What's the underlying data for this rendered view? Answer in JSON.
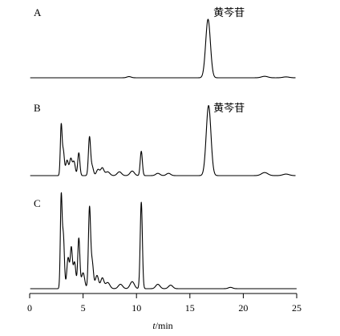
{
  "chart_data": {
    "type": "line",
    "xlabel_italic": "t",
    "xlabel_unit": "/min",
    "xlim": [
      0,
      25
    ],
    "x_ticks": [
      0,
      5,
      10,
      15,
      20,
      25
    ],
    "grid": false,
    "panels": [
      {
        "label": "A",
        "peak_label": "黄芩苷",
        "peak_label_x": 17.2,
        "baseline_end_x": 24.9,
        "peaks": [
          {
            "x": 16.7,
            "h": 1.0,
            "w": 0.22
          },
          {
            "x": 9.3,
            "h": 0.02,
            "w": 0.2
          },
          {
            "x": 22.0,
            "h": 0.025,
            "w": 0.3
          },
          {
            "x": 24.0,
            "h": 0.015,
            "w": 0.3
          }
        ]
      },
      {
        "label": "B",
        "peak_label": "黄芩苷",
        "peak_label_x": 17.2,
        "baseline_end_x": 24.9,
        "peaks": [
          {
            "x": 2.95,
            "h": 0.64,
            "w": 0.08
          },
          {
            "x": 3.15,
            "h": 0.32,
            "w": 0.1
          },
          {
            "x": 3.5,
            "h": 0.2,
            "w": 0.12
          },
          {
            "x": 3.85,
            "h": 0.22,
            "w": 0.12
          },
          {
            "x": 4.15,
            "h": 0.18,
            "w": 0.12
          },
          {
            "x": 4.6,
            "h": 0.3,
            "w": 0.1
          },
          {
            "x": 5.6,
            "h": 0.5,
            "w": 0.1
          },
          {
            "x": 5.85,
            "h": 0.12,
            "w": 0.12
          },
          {
            "x": 6.4,
            "h": 0.08,
            "w": 0.15
          },
          {
            "x": 6.8,
            "h": 0.1,
            "w": 0.15
          },
          {
            "x": 7.3,
            "h": 0.05,
            "w": 0.2
          },
          {
            "x": 8.4,
            "h": 0.05,
            "w": 0.2
          },
          {
            "x": 9.6,
            "h": 0.06,
            "w": 0.2
          },
          {
            "x": 10.45,
            "h": 0.32,
            "w": 0.1
          },
          {
            "x": 12.0,
            "h": 0.03,
            "w": 0.2
          },
          {
            "x": 13.0,
            "h": 0.03,
            "w": 0.2
          },
          {
            "x": 16.75,
            "h": 0.92,
            "w": 0.22
          },
          {
            "x": 22.0,
            "h": 0.04,
            "w": 0.3
          },
          {
            "x": 24.0,
            "h": 0.02,
            "w": 0.3
          }
        ]
      },
      {
        "label": "C",
        "peak_label": "",
        "baseline_end_x": 25,
        "peaks": [
          {
            "x": 2.95,
            "h": 1.0,
            "w": 0.08
          },
          {
            "x": 3.15,
            "h": 0.6,
            "w": 0.1
          },
          {
            "x": 3.6,
            "h": 0.35,
            "w": 0.12
          },
          {
            "x": 3.9,
            "h": 0.45,
            "w": 0.1
          },
          {
            "x": 4.2,
            "h": 0.3,
            "w": 0.12
          },
          {
            "x": 4.6,
            "h": 0.57,
            "w": 0.1
          },
          {
            "x": 5.0,
            "h": 0.18,
            "w": 0.15
          },
          {
            "x": 5.6,
            "h": 0.9,
            "w": 0.1
          },
          {
            "x": 5.85,
            "h": 0.3,
            "w": 0.12
          },
          {
            "x": 6.3,
            "h": 0.15,
            "w": 0.15
          },
          {
            "x": 6.8,
            "h": 0.12,
            "w": 0.15
          },
          {
            "x": 7.3,
            "h": 0.07,
            "w": 0.2
          },
          {
            "x": 8.5,
            "h": 0.05,
            "w": 0.2
          },
          {
            "x": 9.6,
            "h": 0.08,
            "w": 0.2
          },
          {
            "x": 10.45,
            "h": 0.98,
            "w": 0.1
          },
          {
            "x": 12.0,
            "h": 0.05,
            "w": 0.2
          },
          {
            "x": 13.2,
            "h": 0.04,
            "w": 0.2
          },
          {
            "x": 18.8,
            "h": 0.015,
            "w": 0.2
          }
        ]
      }
    ]
  }
}
